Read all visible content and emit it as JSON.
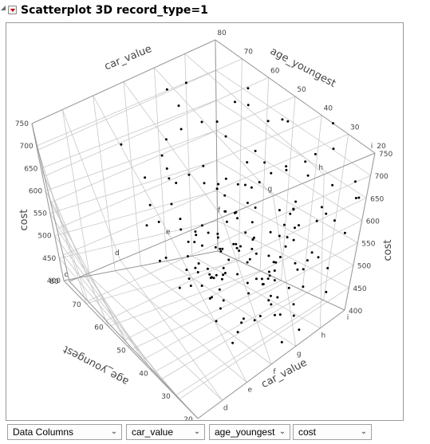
{
  "header": {
    "title": "Scatterplot 3D record_type=1"
  },
  "footer": {
    "dropdowns": [
      {
        "value": "Data Columns"
      },
      {
        "value": "car_value"
      },
      {
        "value": "age_youngest"
      },
      {
        "value": "cost"
      }
    ],
    "chevron_icon": "chevron-down-icon"
  },
  "chart_data": {
    "type": "scatter3d",
    "axes": {
      "x": {
        "label": "car_value",
        "ticks": [
          "c",
          "d",
          "e",
          "f",
          "g",
          "h",
          "i"
        ]
      },
      "y": {
        "label": "age_youngest",
        "ticks": [
          20,
          30,
          40,
          50,
          60,
          70,
          80
        ]
      },
      "z": {
        "label": "cost",
        "ticks": [
          400,
          450,
          500,
          550,
          600,
          650,
          700,
          750
        ]
      }
    },
    "grid": true,
    "point_color": "#000000",
    "points": [
      [
        4.6,
        28,
        742
      ],
      [
        3.9,
        72,
        744
      ],
      [
        5.2,
        56,
        738
      ],
      [
        6.3,
        40,
        723
      ],
      [
        3.2,
        60,
        718
      ],
      [
        5.9,
        33,
        712
      ],
      [
        2.8,
        46,
        705
      ],
      [
        4.4,
        64,
        700
      ],
      [
        6.0,
        52,
        696
      ],
      [
        5.4,
        24,
        690
      ],
      [
        3.6,
        38,
        684
      ],
      [
        4.9,
        44,
        680
      ],
      [
        2.4,
        58,
        674
      ],
      [
        5.1,
        68,
        668
      ],
      [
        6.2,
        62,
        660
      ],
      [
        3.0,
        30,
        652
      ],
      [
        4.2,
        50,
        648
      ],
      [
        5.6,
        46,
        642
      ],
      [
        3.8,
        54,
        636
      ],
      [
        2.6,
        36,
        630
      ],
      [
        4.7,
        34,
        626
      ],
      [
        5.3,
        58,
        620
      ],
      [
        6.1,
        44,
        614
      ],
      [
        3.4,
        66,
        610
      ],
      [
        4.0,
        42,
        604
      ],
      [
        2.9,
        52,
        598
      ],
      [
        5.7,
        30,
        594
      ],
      [
        3.3,
        48,
        588
      ],
      [
        4.5,
        60,
        584
      ],
      [
        6.0,
        36,
        578
      ],
      [
        2.5,
        42,
        574
      ],
      [
        3.9,
        32,
        570
      ],
      [
        5.0,
        50,
        566
      ],
      [
        4.3,
        40,
        560
      ],
      [
        2.7,
        62,
        556
      ],
      [
        5.5,
        38,
        552
      ],
      [
        3.5,
        44,
        548
      ],
      [
        4.8,
        56,
        544
      ],
      [
        6.2,
        28,
        540
      ],
      [
        3.1,
        54,
        536
      ],
      [
        4.1,
        46,
        532
      ],
      [
        5.2,
        42,
        528
      ],
      [
        2.8,
        34,
        524
      ],
      [
        3.7,
        60,
        520
      ],
      [
        5.8,
        48,
        516
      ],
      [
        4.6,
        36,
        512
      ],
      [
        3.2,
        40,
        508
      ],
      [
        4.4,
        52,
        504
      ],
      [
        5.4,
        32,
        500
      ],
      [
        2.6,
        48,
        496
      ],
      [
        3.8,
        42,
        492
      ],
      [
        5.0,
        44,
        488
      ],
      [
        4.2,
        58,
        484
      ],
      [
        6.1,
        50,
        480
      ],
      [
        3.0,
        38,
        476
      ],
      [
        4.9,
        40,
        472
      ],
      [
        3.6,
        50,
        468
      ],
      [
        5.6,
        36,
        464
      ],
      [
        2.9,
        44,
        460
      ],
      [
        4.3,
        34,
        456
      ],
      [
        5.1,
        54,
        452
      ],
      [
        3.4,
        30,
        448
      ],
      [
        4.7,
        46,
        444
      ],
      [
        5.9,
        42,
        440
      ],
      [
        3.9,
        56,
        436
      ],
      [
        2.7,
        40,
        432
      ],
      [
        4.5,
        38,
        428
      ],
      [
        5.3,
        48,
        424
      ],
      [
        3.3,
        46,
        420
      ],
      [
        4.0,
        36,
        416
      ],
      [
        5.7,
        52,
        412
      ],
      [
        4.8,
        30,
        408
      ],
      [
        3.1,
        62,
        680
      ],
      [
        4.1,
        70,
        716
      ],
      [
        5.5,
        66,
        700
      ],
      [
        2.3,
        70,
        690
      ],
      [
        6.3,
        58,
        672
      ],
      [
        4.6,
        74,
        730
      ],
      [
        3.5,
        26,
        660
      ],
      [
        5.8,
        22,
        688
      ],
      [
        2.2,
        52,
        650
      ],
      [
        6.4,
        46,
        640
      ],
      [
        4.4,
        22,
        620
      ],
      [
        3.7,
        72,
        600
      ],
      [
        5.2,
        26,
        612
      ],
      [
        2.5,
        28,
        590
      ],
      [
        6.0,
        64,
        606
      ],
      [
        4.9,
        72,
        580
      ],
      [
        3.2,
        24,
        566
      ],
      [
        5.6,
        60,
        560
      ],
      [
        2.4,
        64,
        548
      ],
      [
        6.3,
        34,
        546
      ],
      [
        4.0,
        26,
        530
      ],
      [
        5.0,
        64,
        518
      ],
      [
        3.6,
        66,
        506
      ],
      [
        4.7,
        24,
        494
      ],
      [
        2.8,
        26,
        482
      ],
      [
        6.2,
        40,
        470
      ],
      [
        4.3,
        66,
        462
      ],
      [
        5.5,
        24,
        450
      ],
      [
        3.0,
        70,
        442
      ],
      [
        4.1,
        30,
        434
      ],
      [
        5.3,
        70,
        426
      ],
      [
        2.6,
        32,
        418
      ],
      [
        4.8,
        62,
        412
      ],
      [
        3.8,
        24,
        404
      ],
      [
        4.2,
        44,
        660
      ],
      [
        4.6,
        48,
        630
      ],
      [
        3.9,
        46,
        606
      ],
      [
        5.1,
        36,
        596
      ],
      [
        4.4,
        42,
        582
      ],
      [
        3.7,
        36,
        578
      ],
      [
        4.9,
        52,
        572
      ],
      [
        4.1,
        38,
        550
      ],
      [
        3.5,
        40,
        540
      ],
      [
        4.5,
        44,
        536
      ],
      [
        5.2,
        46,
        524
      ],
      [
        3.9,
        50,
        514
      ],
      [
        4.3,
        48,
        506
      ],
      [
        4.8,
        38,
        498
      ],
      [
        3.6,
        34,
        486
      ],
      [
        4.2,
        36,
        478
      ],
      [
        5.4,
        44,
        474
      ],
      [
        4.0,
        52,
        466
      ],
      [
        4.6,
        42,
        458
      ],
      [
        3.3,
        56,
        470
      ],
      [
        5.9,
        56,
        590
      ],
      [
        2.9,
        56,
        612
      ],
      [
        6.1,
        24,
        632
      ],
      [
        3.4,
        34,
        652
      ],
      [
        5.7,
        40,
        668
      ],
      [
        4.7,
        58,
        686
      ],
      [
        2.3,
        40,
        560
      ],
      [
        6.4,
        52,
        520
      ],
      [
        3.1,
        44,
        500
      ],
      [
        5.8,
        28,
        480
      ],
      [
        2.7,
        50,
        470
      ],
      [
        4.5,
        26,
        456
      ],
      [
        5.0,
        32,
        640
      ],
      [
        3.8,
        62,
        622
      ],
      [
        4.3,
        56,
        612
      ],
      [
        5.4,
        54,
        592
      ],
      [
        3.0,
        46,
        586
      ],
      [
        4.6,
        30,
        566
      ],
      [
        5.6,
        42,
        570
      ],
      [
        3.7,
        48,
        558
      ],
      [
        4.9,
        58,
        534
      ],
      [
        2.5,
        38,
        526
      ],
      [
        6.0,
        46,
        510
      ],
      [
        3.2,
        52,
        496
      ],
      [
        4.4,
        64,
        490
      ],
      [
        5.3,
        36,
        486
      ],
      [
        3.9,
        28,
        472
      ],
      [
        4.7,
        50,
        466
      ],
      [
        5.1,
        60,
        458
      ],
      [
        3.5,
        58,
        450
      ],
      [
        4.1,
        54,
        444
      ],
      [
        4.8,
        44,
        436
      ],
      [
        3.4,
        36,
        430
      ],
      [
        5.5,
        50,
        428
      ],
      [
        2.9,
        60,
        424
      ],
      [
        4.2,
        62,
        420
      ],
      [
        5.0,
        40,
        414
      ],
      [
        3.6,
        54,
        410
      ],
      [
        4.6,
        34,
        406
      ],
      [
        5.8,
        44,
        402
      ],
      [
        4.0,
        60,
        440
      ],
      [
        3.1,
        36,
        410
      ],
      [
        6.2,
        70,
        694
      ],
      [
        1.9,
        40,
        602
      ],
      [
        6.5,
        30,
        596
      ],
      [
        4.5,
        76,
        642
      ],
      [
        4.9,
        20,
        566
      ],
      [
        4.2,
        20,
        430
      ]
    ]
  }
}
